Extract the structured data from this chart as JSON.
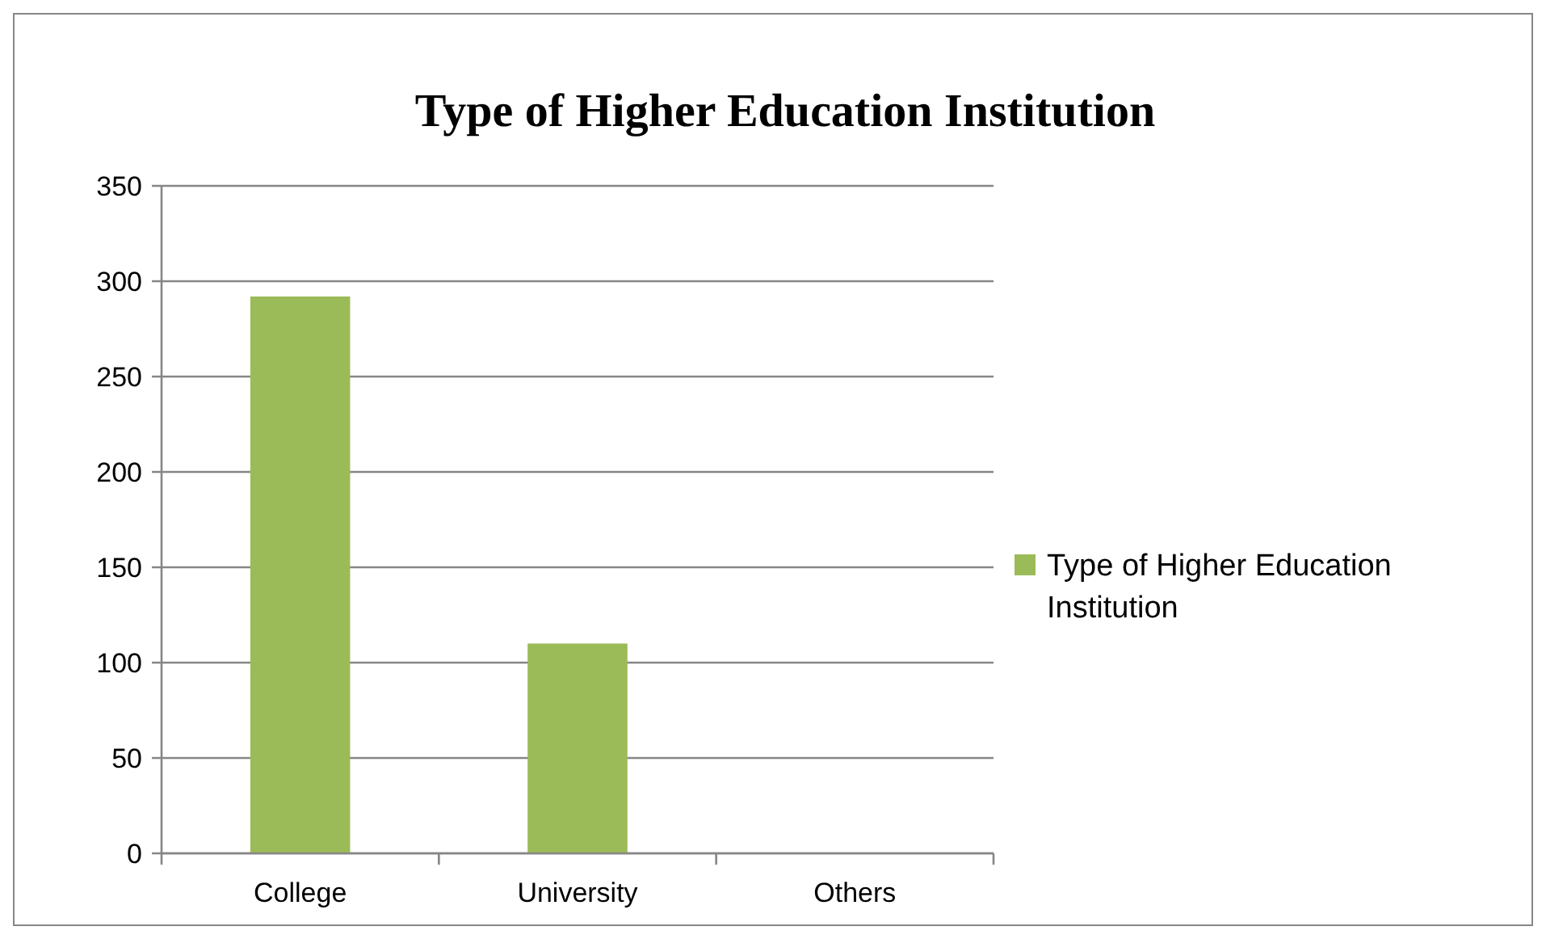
{
  "chart_data": {
    "type": "bar",
    "title": "Type of Higher Education Institution",
    "categories": [
      "College",
      "University",
      "Others"
    ],
    "series": [
      {
        "name": "Type of Higher Education Institution",
        "color": "#9bbb59",
        "values": [
          292,
          110,
          0
        ]
      }
    ],
    "ylim": [
      0,
      350
    ],
    "yticks": [
      0,
      50,
      100,
      150,
      200,
      250,
      300,
      350
    ],
    "grid": "y",
    "legend": "right"
  }
}
